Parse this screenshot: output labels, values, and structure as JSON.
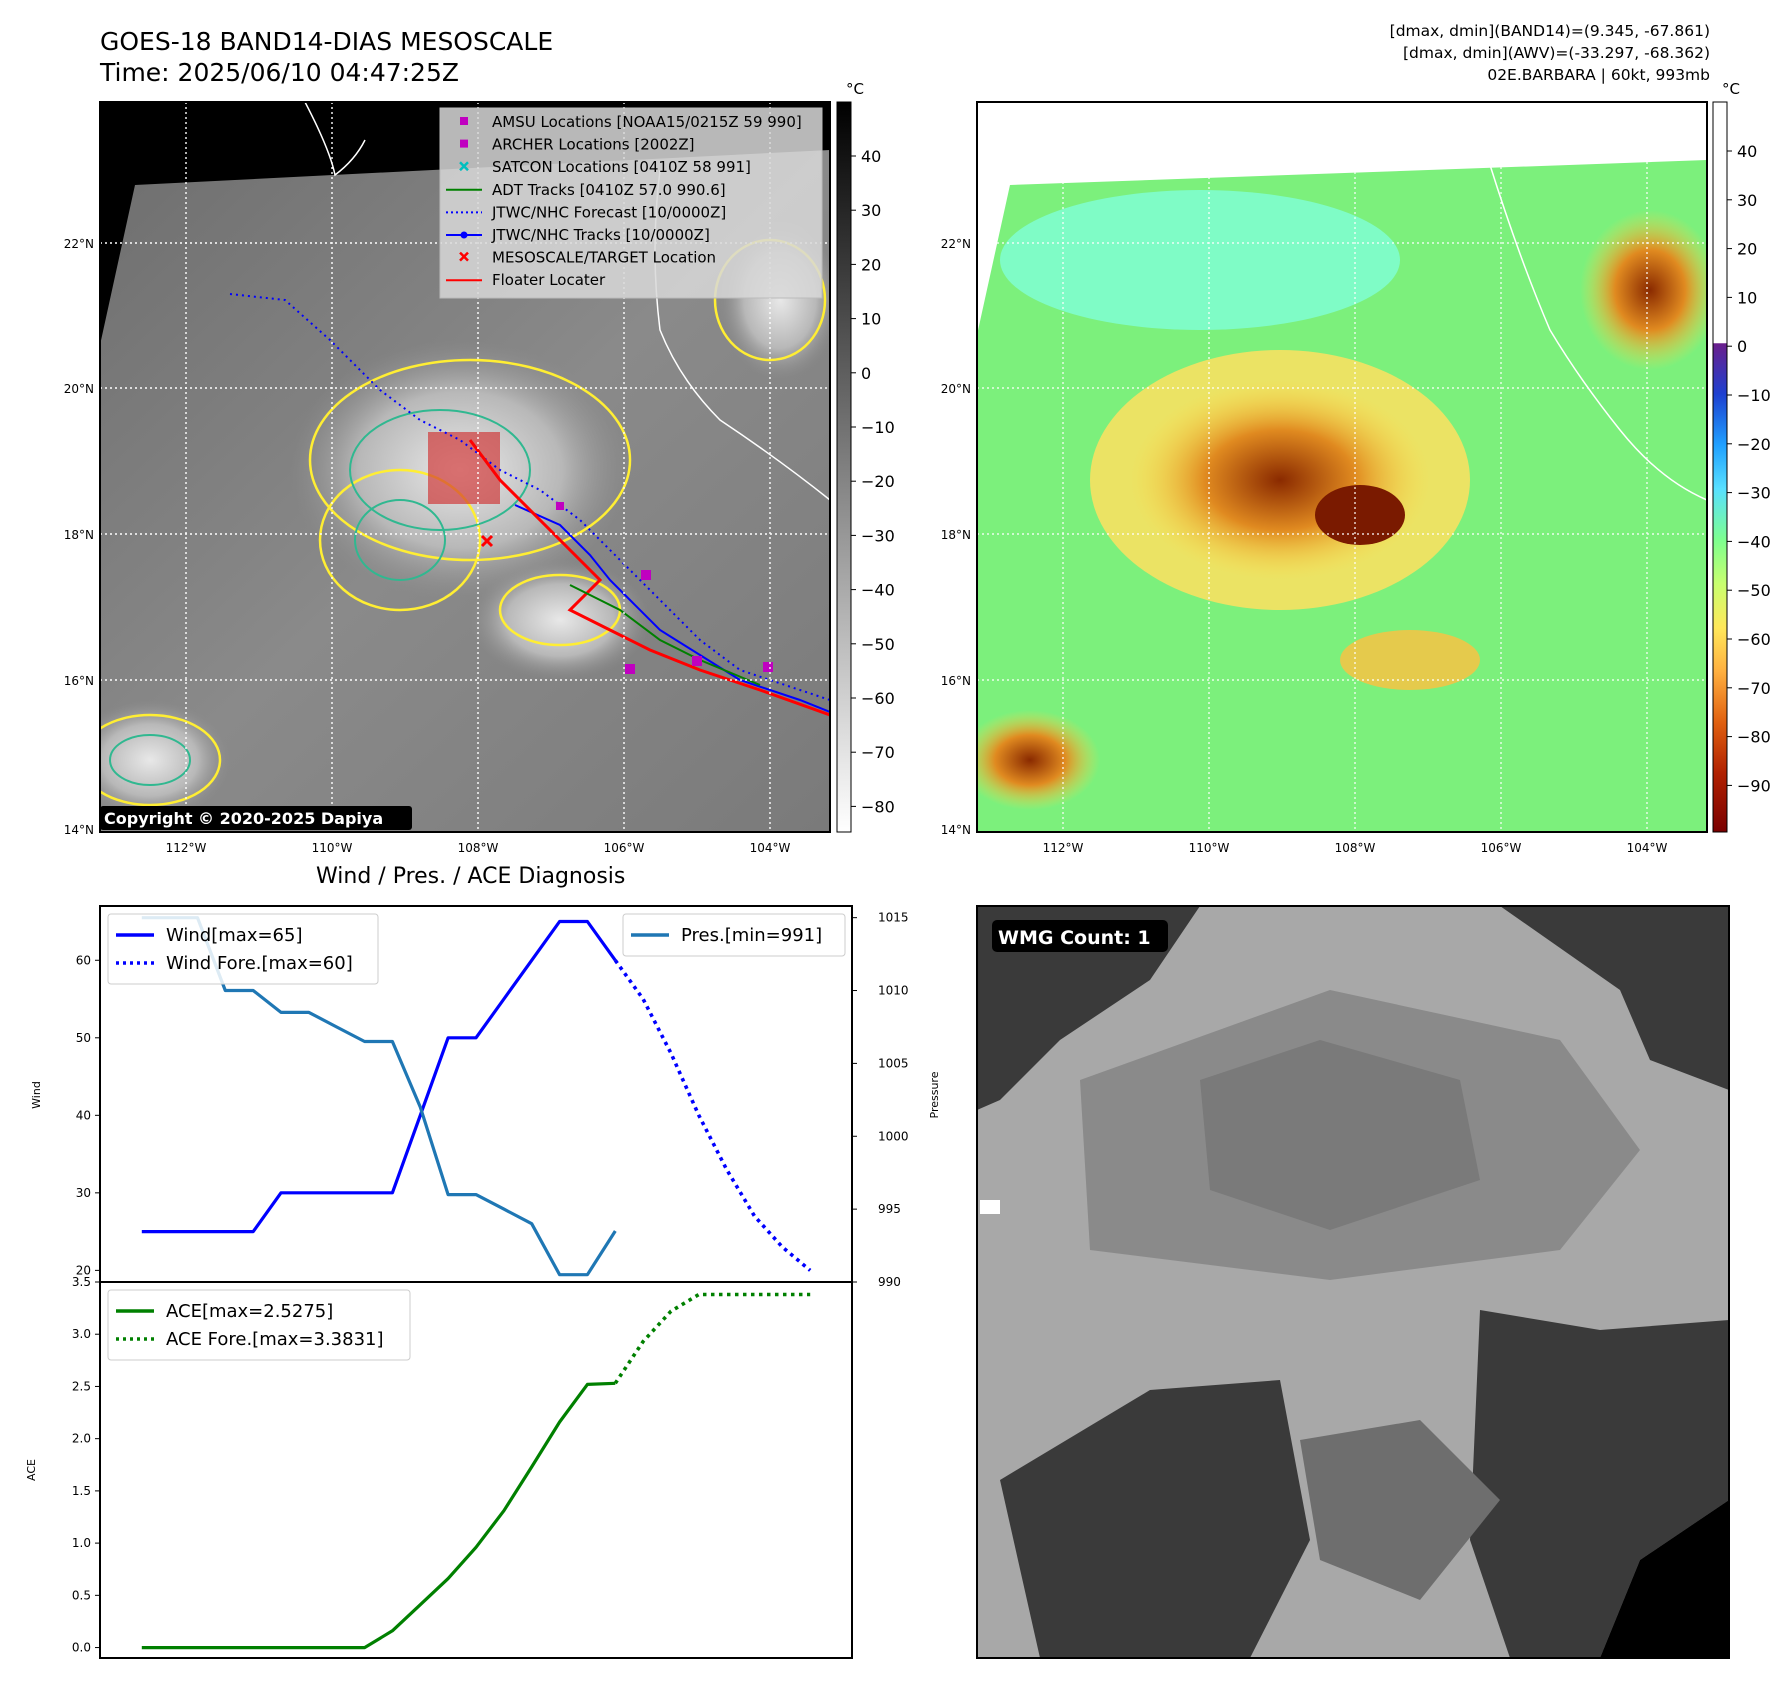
{
  "header": {
    "title_line1": "GOES-18 BAND14-DIAS MESOSCALE",
    "title_line2": "Time: 2025/06/10 04:47:25Z",
    "stats_line1": "[dmax, dmin](BAND14)=(9.345, -67.861)",
    "stats_line2": "[dmax, dmin](AWV)=(-33.297, -68.362)",
    "stats_line3": "02E.BARBARA | 60kt, 993mb"
  },
  "maps": {
    "lat_labels": [
      "22°N",
      "20°N",
      "18°N",
      "16°N",
      "14°N"
    ],
    "lon_labels": [
      "112°W",
      "110°W",
      "108°W",
      "106°W",
      "104°W"
    ],
    "copyright": "Copyright © 2020-2025 Dapiya",
    "colorbar_unit": "°C",
    "colorbar1_ticks": [
      "40",
      "30",
      "20",
      "10",
      "0",
      "−10",
      "−20",
      "−30",
      "−40",
      "−50",
      "−60",
      "−70",
      "−80"
    ],
    "colorbar2_ticks": [
      "40",
      "30",
      "20",
      "10",
      "0",
      "−10",
      "−20",
      "−30",
      "−40",
      "−50",
      "−60",
      "−70",
      "−80",
      "−90"
    ],
    "legend": [
      {
        "label": "AMSU Locations [NOAA15/0215Z 59 990]",
        "color": "#c000c0"
      },
      {
        "label": "ARCHER Locations [2002Z]",
        "color": "#c000c0"
      },
      {
        "label": "SATCON Locations [0410Z 58 991]",
        "color": "#00bfbf"
      },
      {
        "label": "ADT Tracks [0410Z 57.0 990.6]",
        "color": "#008000"
      },
      {
        "label": "JTWC/NHC Forecast [10/0000Z]",
        "color": "#0000ff"
      },
      {
        "label": "JTWC/NHC Tracks [10/0000Z]",
        "color": "#0000ff"
      },
      {
        "label": "MESOSCALE/TARGET Location",
        "color": "#ff0000"
      },
      {
        "label": "Floater Locater",
        "color": "#ff0000"
      }
    ]
  },
  "wmg": {
    "label": "WMG Count: 1"
  },
  "diagnosis": {
    "title": "Wind / Pres. / ACE Diagnosis"
  },
  "chart_data": [
    {
      "type": "line",
      "title": "Wind / Pres. / ACE Diagnosis",
      "ylabel": "Wind",
      "ylim": [
        18.5,
        67
      ],
      "y2label": "Pressure",
      "y2lim": [
        990,
        1015.8
      ],
      "yticks": [
        20,
        30,
        40,
        50,
        60
      ],
      "y2ticks": [
        990,
        995,
        1000,
        1005,
        1010,
        1015
      ],
      "grid": false,
      "legend_left": "upper left",
      "legend_right": "upper right",
      "series": [
        {
          "name": "Wind[max=65]",
          "axis": "left",
          "style": "solid",
          "color": "#0000ff",
          "x": [
            0,
            3,
            4,
            5,
            6,
            7,
            8,
            9,
            10,
            11,
            12,
            13,
            14,
            15,
            16,
            17
          ],
          "values": [
            25,
            25,
            25,
            30,
            30,
            30,
            30,
            30,
            40,
            50,
            50,
            55,
            60,
            65,
            65,
            60
          ]
        },
        {
          "name": "Wind Fore.[max=60]",
          "axis": "left",
          "style": "dotted",
          "color": "#0000ff",
          "x": [
            17,
            18,
            19,
            20,
            21,
            22,
            23,
            24
          ],
          "values": [
            60,
            55,
            48,
            40,
            33,
            27,
            23,
            20
          ]
        },
        {
          "name": "Pres.[min=991]",
          "axis": "right",
          "style": "solid",
          "color": "#1f77b4",
          "x": [
            0,
            1,
            2,
            3,
            4,
            5,
            6,
            7,
            8,
            9,
            10,
            11,
            12,
            13,
            14,
            15,
            16,
            17
          ],
          "values": [
            1015,
            1015,
            1015,
            1010,
            1010,
            1008.5,
            1008.5,
            1007.5,
            1006.5,
            1006.5,
            1002,
            996,
            996,
            995,
            994,
            990.5,
            990.5,
            993.5
          ]
        }
      ]
    },
    {
      "type": "line",
      "ylabel": "ACE",
      "ylim": [
        -0.1,
        3.5
      ],
      "yticks": [
        0.0,
        0.5,
        1.0,
        1.5,
        2.0,
        2.5,
        3.0,
        3.5
      ],
      "grid": false,
      "legend": "upper left",
      "series": [
        {
          "name": "ACE[max=2.5275]",
          "style": "solid",
          "color": "#008000",
          "x": [
            0,
            1,
            2,
            3,
            4,
            5,
            6,
            7,
            8,
            9,
            10,
            11,
            12,
            13,
            14,
            15,
            16,
            17
          ],
          "values": [
            0,
            0,
            0,
            0,
            0,
            0,
            0,
            0,
            0,
            0.16,
            0.41,
            0.66,
            0.96,
            1.31,
            1.73,
            2.16,
            2.52,
            2.53
          ]
        },
        {
          "name": "ACE Fore.[max=3.3831]",
          "style": "dotted",
          "color": "#008000",
          "x": [
            17,
            18,
            19,
            20,
            21,
            22,
            23,
            24
          ],
          "values": [
            2.53,
            2.93,
            3.22,
            3.38,
            3.38,
            3.38,
            3.38,
            3.38
          ]
        }
      ]
    }
  ]
}
